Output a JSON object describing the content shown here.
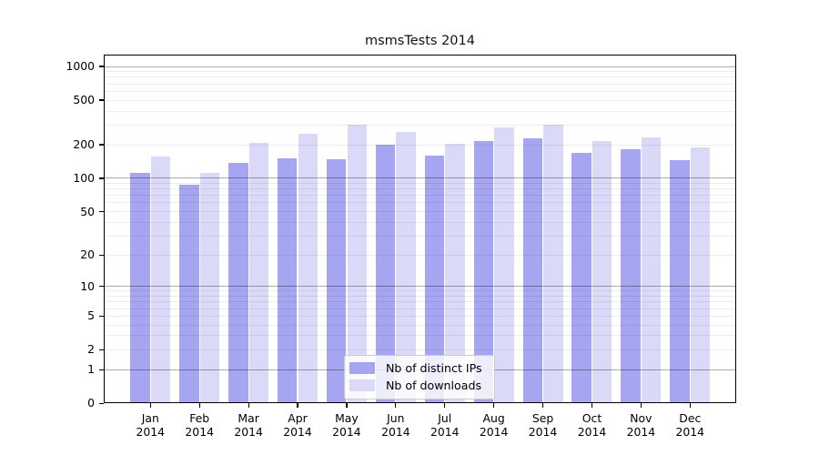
{
  "chart_data": {
    "type": "bar",
    "title": "msmsTests 2014",
    "categories": [
      "Jan",
      "Feb",
      "Mar",
      "Apr",
      "May",
      "Jun",
      "Jul",
      "Aug",
      "Sep",
      "Oct",
      "Nov",
      "Dec"
    ],
    "category_year": "2014",
    "series": [
      {
        "name": "Nb of distinct IPs",
        "color": "#a5a5f1",
        "values": [
          111,
          87,
          138,
          152,
          148,
          200,
          160,
          215,
          229,
          170,
          183,
          146
        ]
      },
      {
        "name": "Nb of downloads",
        "color": "#dadaf8",
        "values": [
          156,
          111,
          207,
          250,
          300,
          258,
          204,
          285,
          302,
          215,
          232,
          189
        ]
      }
    ],
    "xlabel": "",
    "ylabel": "",
    "yscale": "symlog",
    "yticks": [
      0,
      1,
      2,
      5,
      10,
      20,
      50,
      100,
      200,
      500,
      1000
    ],
    "ylim": [
      0,
      1280
    ],
    "grid": true,
    "legend_position": "lower center"
  }
}
